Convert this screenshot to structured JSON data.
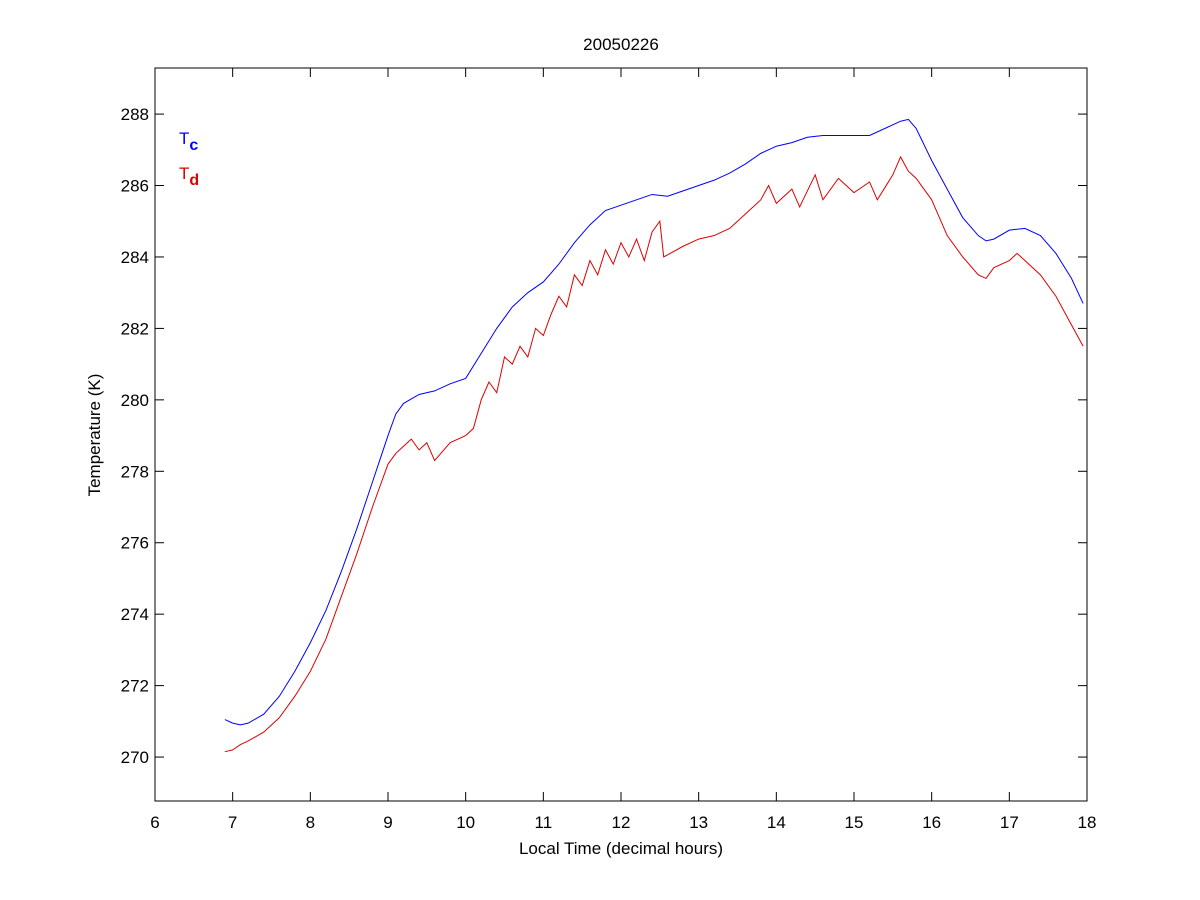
{
  "chart_data": {
    "type": "line",
    "title": "20050226",
    "xlabel": "Local Time (decimal hours)",
    "ylabel": "Temperature (K)",
    "xlim": [
      6,
      18
    ],
    "xticks": [
      6,
      7,
      8,
      9,
      10,
      11,
      12,
      13,
      14,
      15,
      16,
      17,
      18
    ],
    "ylim": [
      268.77,
      289.29
    ],
    "yticks": [
      270,
      272,
      274,
      276,
      278,
      280,
      282,
      284,
      286,
      288
    ],
    "legend": "upper left",
    "series": [
      {
        "name": "Tc",
        "color": "#0000ff",
        "x": [
          6.9,
          7.0,
          7.1,
          7.2,
          7.4,
          7.6,
          7.8,
          8.0,
          8.2,
          8.4,
          8.6,
          8.8,
          9.0,
          9.1,
          9.2,
          9.4,
          9.6,
          9.8,
          10.0,
          10.2,
          10.4,
          10.6,
          10.8,
          11.0,
          11.2,
          11.4,
          11.6,
          11.8,
          12.0,
          12.2,
          12.4,
          12.6,
          12.8,
          13.0,
          13.2,
          13.4,
          13.6,
          13.8,
          14.0,
          14.2,
          14.4,
          14.6,
          14.8,
          15.0,
          15.2,
          15.4,
          15.6,
          15.7,
          15.8,
          16.0,
          16.2,
          16.4,
          16.6,
          16.7,
          16.8,
          17.0,
          17.2,
          17.4,
          17.6,
          17.8,
          17.95
        ],
        "values": [
          271.05,
          270.95,
          270.9,
          270.95,
          271.2,
          271.7,
          272.4,
          273.2,
          274.1,
          275.2,
          276.4,
          277.7,
          279.0,
          279.6,
          279.9,
          280.15,
          280.25,
          280.45,
          280.6,
          281.3,
          282.0,
          282.6,
          283.0,
          283.3,
          283.8,
          284.4,
          284.9,
          285.3,
          285.45,
          285.6,
          285.75,
          285.7,
          285.85,
          286.0,
          286.15,
          286.35,
          286.6,
          286.9,
          287.1,
          287.2,
          287.35,
          287.4,
          287.4,
          287.4,
          287.4,
          287.6,
          287.8,
          287.85,
          287.6,
          286.7,
          285.9,
          285.1,
          284.6,
          284.45,
          284.5,
          284.75,
          284.8,
          284.6,
          284.1,
          283.4,
          282.7
        ]
      },
      {
        "name": "Td",
        "color": "#e00000",
        "x": [
          6.9,
          7.0,
          7.1,
          7.2,
          7.4,
          7.6,
          7.8,
          8.0,
          8.2,
          8.4,
          8.6,
          8.8,
          9.0,
          9.1,
          9.2,
          9.3,
          9.4,
          9.5,
          9.6,
          9.8,
          10.0,
          10.1,
          10.2,
          10.3,
          10.4,
          10.5,
          10.6,
          10.7,
          10.8,
          10.9,
          11.0,
          11.1,
          11.2,
          11.3,
          11.4,
          11.5,
          11.6,
          11.7,
          11.8,
          11.9,
          12.0,
          12.1,
          12.2,
          12.3,
          12.4,
          12.5,
          12.55,
          12.8,
          13.0,
          13.2,
          13.4,
          13.6,
          13.8,
          13.9,
          14.0,
          14.2,
          14.3,
          14.5,
          14.6,
          14.8,
          15.0,
          15.2,
          15.3,
          15.5,
          15.6,
          15.7,
          15.8,
          16.0,
          16.2,
          16.4,
          16.6,
          16.7,
          16.8,
          17.0,
          17.1,
          17.2,
          17.4,
          17.6,
          17.8,
          17.95
        ],
        "values": [
          270.15,
          270.2,
          270.35,
          270.45,
          270.7,
          271.1,
          271.7,
          272.4,
          273.3,
          274.5,
          275.7,
          277.0,
          278.2,
          278.5,
          278.7,
          278.9,
          278.6,
          278.8,
          278.3,
          278.8,
          279.0,
          279.2,
          280.0,
          280.5,
          280.2,
          281.2,
          281.0,
          281.5,
          281.2,
          282.0,
          281.8,
          282.4,
          282.9,
          282.6,
          283.5,
          283.2,
          283.9,
          283.5,
          284.2,
          283.8,
          284.4,
          284.0,
          284.5,
          283.9,
          284.7,
          285.0,
          284.0,
          284.3,
          284.5,
          284.6,
          284.8,
          285.2,
          285.6,
          286.0,
          285.5,
          285.9,
          285.4,
          286.3,
          285.6,
          286.2,
          285.8,
          286.1,
          285.6,
          286.3,
          286.8,
          286.4,
          286.2,
          285.6,
          284.6,
          284.0,
          283.5,
          283.4,
          283.7,
          283.9,
          284.1,
          283.9,
          283.5,
          282.9,
          282.1,
          281.5
        ]
      }
    ]
  }
}
